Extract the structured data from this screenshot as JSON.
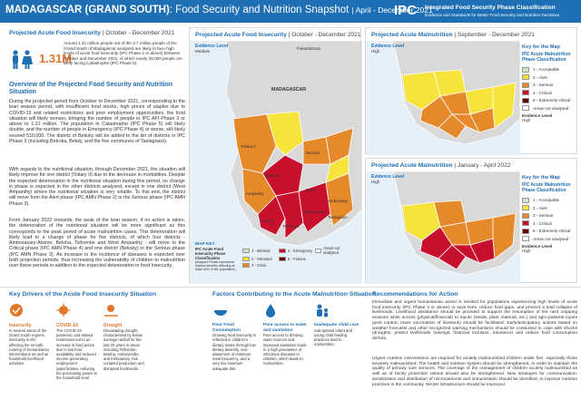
{
  "header": {
    "country": "MADAGASCAR (GRAND SOUTH)",
    "title": ": Food Security and Nutrition Snapshot",
    "dates": "| April - December 2021",
    "logo_text": "IPC",
    "logo_sub1": "Integrated Food Security Phase Classification",
    "logo_sub2": "Evidence and Standards for Better Food Security and Nutrition Decisions"
  },
  "acute_food_insecurity": {
    "title": "Projected Acute Food Insecurity",
    "period": "| October - December 2021",
    "figure": "1.31M",
    "summary": "Around 1.31 million people out of the 2.7 million people of the Grand South of Madagascar analysed are likely to face high levels of acute food insecurity (IPC Phase 3 or above) between October and December 2021, of which nearly 28,000 people are likely facing Catastrophe (IPC Phase 5)."
  },
  "overview": {
    "title": "Overview of the Projected Food Security and Nutrition Situation",
    "paragraphs": [
      "During the projected period from October to December 2021, corresponding to the lean season period, with insufficient food stocks, high prices of staples due to COVID-19 and related restrictions and poor employment opportunities, the food situation will likely worsen, bringing the number of people in IPC AFI Phase 3 or above to 1.31 million. The population in Catastrophe (IPC Phase 5) will likely double, and the number of people in Emergency (IPC Phase 4) or worse, will likely exceed 510,000. The district of Betioky will be added to the list of districts in IPC Phase 3 (including Betroka, Bekily, and the five communes of Taolagnaro).",
      "With regards to the nutritional situation, through December 2021, the situation will likely improve for one district (Toliary II) due to the decrease in morbidities. Despite the expected deterioration in the nutritional situation during this period, no change in phase is expected in the other districts analysed, except in one district (West Ampanihy) where the nutritional situation is very volatile. To this end, the district will move from the Alert phase (IPC AMN Phase 2) to the Serious phase (IPC AMN Phase 3).",
      "From January 2022 onwards, the peak of the lean season, if no action is taken, the deterioration of the nutritional situation will be more significant as this corresponds to the peak period of acute malnutrition cases. This deterioration will likely lead to a change of phase for five districts, of which four districts - Ambosasary-Atsimo, Beloha, Tsihombe and West Ampanihy - will move to the Critical phase (IPC AMN Phase 4) and one district (Betioky) to the Serious phase (IPC AMN Phase 3). An increase in the incidence of diseases is expected over both projection periods, thus increasing the vulnerability of children to malnutrition over these periods in addition to the expected deterioration in food insecurity."
    ]
  },
  "afi_map": {
    "title": "Projected Acute Food Insecurity",
    "period": "| October - December 2021",
    "evidence_title": "Evidence Level",
    "evidence_value": "Medium",
    "labels": {
      "fianarantsoa": "Fianarantsoa",
      "madagascar": "MADAGASCAR",
      "toliara": "Toliara 2",
      "betioky": "Betioky",
      "ampanihy": "Ampanihy",
      "bekily": "Bekily",
      "betroka": "Betroka",
      "beloha": "Beloha",
      "tsihombe": "Tsihombe",
      "ambovombe": "Ambovombe",
      "amboasary": "Amboasary",
      "taolagnaro": "Taolagnaro"
    },
    "map_key_title": "MAP KEY",
    "map_key_sub": "IPC Acute Food Insecurity Phase Classification",
    "map_key_note": "(mapped Phase represents highest severity affecting at least 20% of the population)",
    "legend": [
      {
        "label": "1 - Minimal",
        "color": "#cde5c3"
      },
      {
        "label": "2 - Stressed",
        "color": "#f7e43a"
      },
      {
        "label": "3 - Crisis",
        "color": "#e6892a"
      },
      {
        "label": "4 - Emergency",
        "color": "#c8102e"
      },
      {
        "label": "5 - Famine",
        "color": "#640000"
      },
      {
        "label": "Areas not analysed",
        "color": "#ffffff"
      }
    ]
  },
  "amn_map_1": {
    "title": "Projected Acute Malnutrition",
    "period": "| September - December 2021",
    "evidence_title": "Evidence Level",
    "evidence_value": "High"
  },
  "amn_map_2": {
    "title": "Projected Acute Malnutrition",
    "period": "| January - April 2022",
    "evidence_title": "Evidence Level",
    "evidence_value": "High"
  },
  "amn_key": {
    "title": "Key for the Map",
    "subtitle": "IPC Acute Malnutrition Phase Classification",
    "phases": [
      {
        "label": "1 - Acceptable",
        "color": "#cde5c3"
      },
      {
        "label": "2 - Alert",
        "color": "#f7e43a"
      },
      {
        "label": "3 - Serious",
        "color": "#e6892a"
      },
      {
        "label": "4 - Critical",
        "color": "#c8102e"
      },
      {
        "label": "5 - Extremely critical",
        "color": "#640000"
      },
      {
        "label": "Areas not analysed",
        "color": "#ffffff"
      }
    ],
    "evidence": "Evidence Level",
    "evidence_value": "High"
  },
  "drivers": {
    "title": "Key Drivers of the Acute Food Insecurity Situation",
    "items": [
      {
        "title": "Insecurity",
        "text": "In several areas of the Grand South regions, insecurity is rife, affecting the smooth running of humanitarian interventions as well as household livelihood activities."
      },
      {
        "title": "COVID-19",
        "text": "The COVID-19 pandemic and related restrictions led to an increase in food prices due to low food availability and reduced income-generating employment opportunities, reducing the purchasing power at the household level."
      },
      {
        "title": "Drought",
        "text": "Devastating drought, characterised by below average rainfall for the last 20 years in areas including Tsihombe, Beloha, Ambovombe and Amboasary, has curtailed production and disrupted livelihoods."
      }
    ]
  },
  "factors": {
    "title": "Factors Contributing to the Acute Malnutrition Situation",
    "items": [
      {
        "title": "Poor Food Consumption",
        "text": "Growing food insecurity is reflected in children's dietary intake through low dietary diversity, non-attainment of minimum meal frequency, and a very low minimum adequate diet."
      },
      {
        "title": "Poor access to water and sanitation",
        "text": "Poor access to drinking water sources and improved sanitation leads to a high prevalence of infectious diseases in children, which leads to malnutrition."
      },
      {
        "title": "Inadequate child care",
        "text": "Sub-optimal infant and young child feeding practices lead to malnutrition."
      }
    ]
  },
  "recommendations": {
    "title": "Recommendations for Action",
    "paragraphs": [
      "Immediate and urgent humanitarian action is needed for populations experiencing high levels of acute food insecurity (IPC Phase 3 or above) to save lives, reduce food gaps, and prevent a total collapse of livelihoods. Livelihood assistance should be provided to support the resumption of the next cropping seasons while access (physical/financial) to inputs (seeds, plant material, etc.) and agro-pastoral inputs (pest control, mass vaccination of livestock) should be facilitated. Early/anticipatory actions based on weather forecasts and other recognized warning mechanisms should be conducted to cope with shocks (droughts, protect livelihoods (savings, financial inclusion, insurance) and reduce food consumption deficits.",
      "Urgent nutrition interventions are required for acutely malnourished children under five, especially those severely malnourished. The health and nutrition system should be strengthened, in order to maintain the quality of primary care services. The coverage of the management of children acutely malnourished as well as of family protection rations should also be strengthened. New strategies for communication, sensitization and distribution of micronutrients and immunization should be identified, to improve nutrition practices in the community. WASH infrastructure should be improved."
    ]
  }
}
